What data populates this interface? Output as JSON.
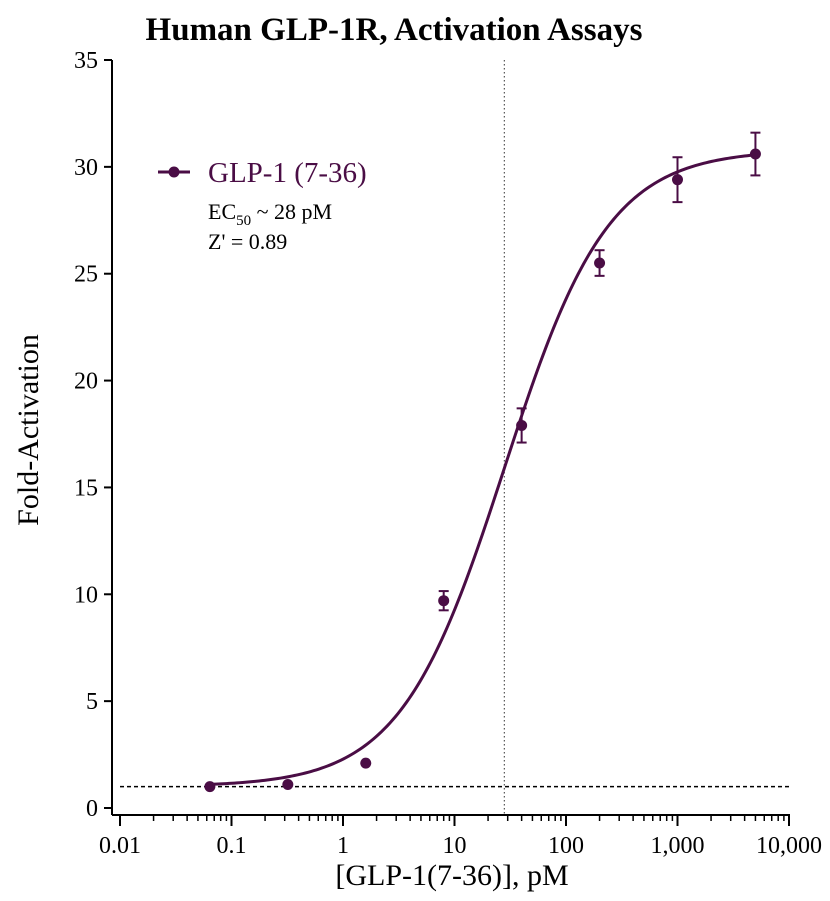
{
  "chart_data": {
    "type": "scatter",
    "title": "Human GLP-1R, Activation Assays",
    "xlabel": "[GLP-1(7-36)], pM",
    "ylabel": "Fold-Activation",
    "xscale": "log",
    "xlim": [
      0.01,
      10000
    ],
    "ylim": [
      0,
      35
    ],
    "xticks": [
      {
        "value": 0.01,
        "label": "0.01"
      },
      {
        "value": 0.1,
        "label": "0.1"
      },
      {
        "value": 1,
        "label": "1"
      },
      {
        "value": 10,
        "label": "10"
      },
      {
        "value": 100,
        "label": "100"
      },
      {
        "value": 1000,
        "label": "1,000"
      },
      {
        "value": 10000,
        "label": "10,000"
      }
    ],
    "yticks": [
      {
        "value": 0,
        "label": "0"
      },
      {
        "value": 5,
        "label": "5"
      },
      {
        "value": 10,
        "label": "10"
      },
      {
        "value": 15,
        "label": "15"
      },
      {
        "value": 20,
        "label": "20"
      },
      {
        "value": 25,
        "label": "25"
      },
      {
        "value": 30,
        "label": "30"
      },
      {
        "value": 35,
        "label": "35"
      }
    ],
    "grid": false,
    "legend_position": "top-left",
    "color": "#4a0d45",
    "series": [
      {
        "name": "GLP-1 (7-36)",
        "points": [
          {
            "x": 0.064,
            "y": 1.0,
            "err": 0
          },
          {
            "x": 0.32,
            "y": 1.1,
            "err": 0
          },
          {
            "x": 1.6,
            "y": 2.1,
            "err": 0
          },
          {
            "x": 8,
            "y": 9.7,
            "err": 0.45
          },
          {
            "x": 40,
            "y": 17.9,
            "err": 0.8
          },
          {
            "x": 200,
            "y": 25.5,
            "err": 0.6
          },
          {
            "x": 1000,
            "y": 29.4,
            "err": 1.05
          },
          {
            "x": 5000,
            "y": 30.6,
            "err": 1.0
          }
        ],
        "fit": {
          "model": "4PL",
          "bottom": 1.0,
          "top": 30.8,
          "ec50": 28,
          "hill": 0.93
        }
      }
    ],
    "annotations": {
      "ec50_prefix": "EC",
      "ec50_subscript": "50",
      "ec50_suffix": " ~ 28 pM",
      "zprime": "Z' = 0.89"
    },
    "reference_lines": {
      "baseline_y": 1.0,
      "ec50_x": 28
    }
  }
}
